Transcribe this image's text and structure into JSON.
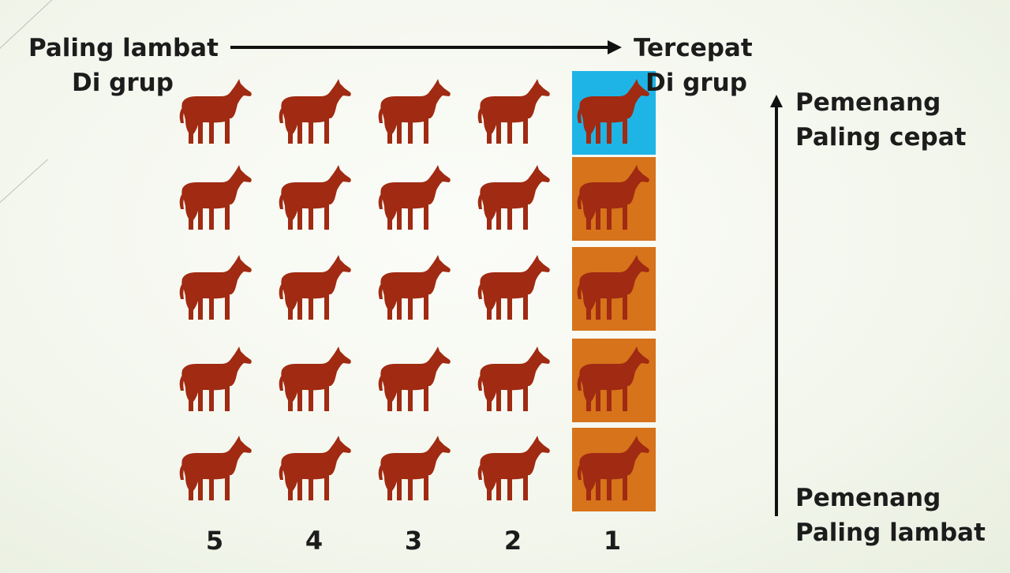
{
  "top_left": {
    "line1": "Paling lambat",
    "line2": "Di grup"
  },
  "top_right": {
    "line1": "Tercepat",
    "line2": "Di grup"
  },
  "right_top": {
    "line1": "Pemenang",
    "line2": "Paling cepat"
  },
  "right_bottom": {
    "line1": "Pemenang",
    "line2": "Paling lambat"
  },
  "column_numbers": [
    "5",
    "4",
    "3",
    "2",
    "1"
  ],
  "grid": {
    "rows": 5,
    "columns": 5
  },
  "colors": {
    "horse": "#a02a12",
    "winner_highlight": "#1eb5e6",
    "group_winner_highlight": "#d6731b",
    "text": "#1c1c1c"
  },
  "icons": {
    "horse": "horse-icon",
    "arrow": "arrow-icon"
  }
}
